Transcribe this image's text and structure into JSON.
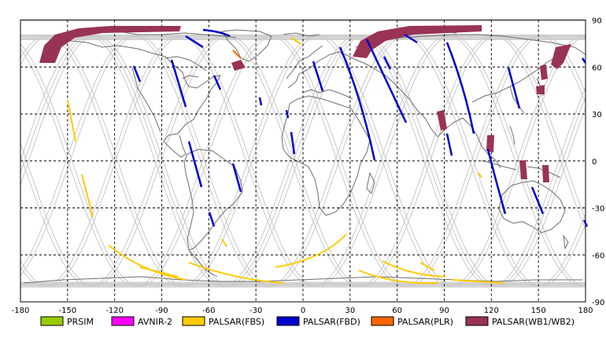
{
  "x_ticks": [
    "-180",
    "-150",
    "-120",
    "-90",
    "-60",
    "-30",
    "0",
    "30",
    "60",
    "90",
    "120",
    "150",
    "180"
  ],
  "y_ticks": [
    "90",
    "60",
    "30",
    "0",
    "-30",
    "-60",
    "-90"
  ],
  "legend": [
    {
      "label": "PRSIM",
      "color": "#99cc00"
    },
    {
      "label": "AVNIR-2",
      "color": "#ff00ff"
    },
    {
      "label": "PALSAR(FBS)",
      "color": "#ffcc00"
    },
    {
      "label": "PALSAR(FBD)",
      "color": "#0000cc"
    },
    {
      "label": "PALSAR(PLR)",
      "color": "#ff6600"
    },
    {
      "label": "PALSAR(WB1/WB2)",
      "color": "#993355"
    }
  ],
  "colors": {
    "coast": "#6e6e6e",
    "orbit": "#c8c8c8",
    "grid": "#000000",
    "fbs": "#ffcc00",
    "fbd": "#0000cc",
    "plr": "#ff6600",
    "wb": "#993355"
  }
}
